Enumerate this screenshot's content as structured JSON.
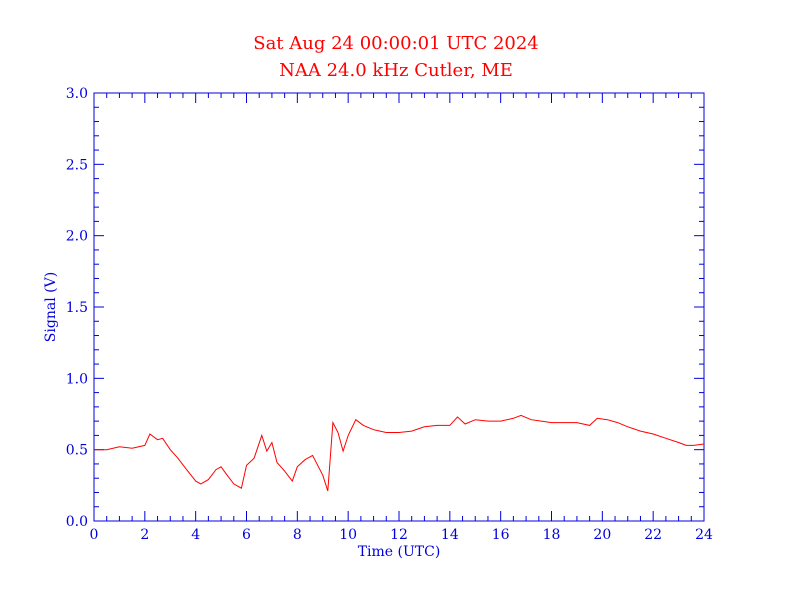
{
  "header": {
    "title_line1": "Sat Aug 24 00:00:01 UTC 2024",
    "title_line2": "NAA 24.0 kHz Cutler, ME"
  },
  "colors": {
    "axis": "#0000dd",
    "series": "#ff0000",
    "title": "#ff0000",
    "background": "#ffffff"
  },
  "chart_data": {
    "type": "line",
    "title": "Sat Aug 24 00:00:01 UTC 2024 / NAA 24.0 kHz Cutler, ME",
    "xlabel": "Time (UTC)",
    "ylabel": "Signal (V)",
    "xlim": [
      0,
      24
    ],
    "ylim": [
      0.0,
      3.0
    ],
    "x_ticks": [
      0,
      2,
      4,
      6,
      8,
      10,
      12,
      14,
      16,
      18,
      20,
      22,
      24
    ],
    "y_ticks": [
      0.0,
      0.5,
      1.0,
      1.5,
      2.0,
      2.5,
      3.0
    ],
    "x_tick_labels": [
      "0",
      "2",
      "4",
      "6",
      "8",
      "10",
      "12",
      "14",
      "16",
      "18",
      "20",
      "22",
      "24"
    ],
    "y_tick_labels": [
      "0.0",
      "0.5",
      "1.0",
      "1.5",
      "2.0",
      "2.5",
      "3.0"
    ],
    "grid": false,
    "series": [
      {
        "name": "NAA 24.0 kHz",
        "x": [
          0,
          0.5,
          1.0,
          1.5,
          2.0,
          2.2,
          2.5,
          2.7,
          3.0,
          3.3,
          3.6,
          4.0,
          4.2,
          4.5,
          4.8,
          5.0,
          5.2,
          5.5,
          5.8,
          6.0,
          6.3,
          6.6,
          6.8,
          7.0,
          7.2,
          7.5,
          7.8,
          8.0,
          8.3,
          8.6,
          9.0,
          9.2,
          9.4,
          9.6,
          9.8,
          10.0,
          10.3,
          10.6,
          11.0,
          11.5,
          12.0,
          12.5,
          13.0,
          13.5,
          14.0,
          14.3,
          14.6,
          15.0,
          15.5,
          16.0,
          16.5,
          16.8,
          17.2,
          17.6,
          18.0,
          18.5,
          19.0,
          19.5,
          19.8,
          20.2,
          20.6,
          21.0,
          21.5,
          22.0,
          22.5,
          23.0,
          23.3,
          23.6,
          24.0
        ],
        "values": [
          0.5,
          0.5,
          0.52,
          0.51,
          0.53,
          0.61,
          0.57,
          0.58,
          0.5,
          0.44,
          0.37,
          0.28,
          0.26,
          0.29,
          0.36,
          0.38,
          0.33,
          0.26,
          0.23,
          0.39,
          0.44,
          0.6,
          0.49,
          0.55,
          0.41,
          0.35,
          0.28,
          0.38,
          0.43,
          0.46,
          0.32,
          0.21,
          0.69,
          0.62,
          0.49,
          0.6,
          0.71,
          0.67,
          0.64,
          0.62,
          0.62,
          0.63,
          0.66,
          0.67,
          0.67,
          0.73,
          0.68,
          0.71,
          0.7,
          0.7,
          0.72,
          0.74,
          0.71,
          0.7,
          0.69,
          0.69,
          0.69,
          0.67,
          0.72,
          0.71,
          0.69,
          0.66,
          0.63,
          0.61,
          0.58,
          0.55,
          0.53,
          0.53,
          0.54
        ]
      }
    ]
  }
}
